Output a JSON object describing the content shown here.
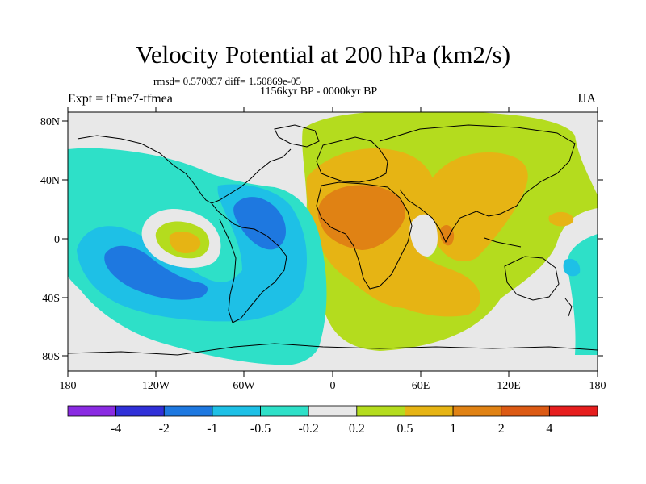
{
  "title": "Velocity Potential at 200 hPa (km2/s)",
  "stats": "rmsd= 0.570857  diff= 1.50869e-05",
  "period": "1156kyr BP - 0000kyr BP",
  "experiment": "Expt = tFme7-tfmea",
  "season": "JJA",
  "axes": {
    "x_ticks": [
      "180",
      "120W",
      "60W",
      "0",
      "60E",
      "120E",
      "180"
    ],
    "y_ticks": [
      "80N",
      "40N",
      "0",
      "40S",
      "80S"
    ]
  },
  "colorbar": {
    "colors": [
      "#8a2be2",
      "#3030d8",
      "#1e78e0",
      "#1ec0e6",
      "#2ee0c8",
      "#e8e8e8",
      "#b4dc1e",
      "#e6b414",
      "#e08214",
      "#dc5a14",
      "#e61e1e"
    ],
    "labels": [
      "-4",
      "-2",
      "-1",
      "-0.5",
      "-0.2",
      "0.2",
      "0.5",
      "1",
      "2",
      "4"
    ]
  }
}
